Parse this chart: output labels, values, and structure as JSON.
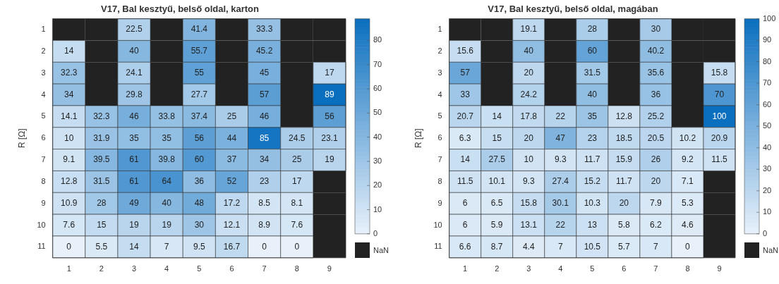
{
  "chart_data": [
    {
      "type": "heatmap",
      "title": "V17, Bal kesztyű, belső oldal, karton",
      "ylabel": "R [Ω]",
      "categories": [
        "1",
        "2",
        "3",
        "4",
        "5",
        "6",
        "7",
        "8",
        "9"
      ],
      "y_categories": [
        "1",
        "2",
        "3",
        "4",
        "5",
        "6",
        "7",
        "8",
        "9",
        "10",
        "11"
      ],
      "cells": [
        [
          null,
          null,
          22.5,
          null,
          41.4,
          null,
          33.3,
          null,
          null
        ],
        [
          14,
          null,
          40,
          null,
          55.7,
          null,
          45.2,
          null,
          null
        ],
        [
          32.3,
          null,
          24.1,
          null,
          55,
          null,
          45,
          null,
          17
        ],
        [
          34,
          null,
          29.8,
          null,
          27.7,
          null,
          57,
          null,
          89
        ],
        [
          14.1,
          32.3,
          46,
          33.8,
          37.4,
          25,
          46,
          null,
          56
        ],
        [
          10,
          31.9,
          35,
          35,
          56,
          44,
          85,
          24.5,
          23.1
        ],
        [
          9.1,
          39.5,
          61,
          39.8,
          60,
          37,
          34,
          25,
          19
        ],
        [
          12.8,
          31.5,
          61,
          64,
          36,
          52,
          23,
          17,
          null
        ],
        [
          10.9,
          28,
          49,
          40,
          48,
          17.2,
          8.5,
          8.1,
          null
        ],
        [
          7.6,
          15,
          19,
          19,
          30,
          12.1,
          8.9,
          7.6,
          null
        ],
        [
          0,
          5.5,
          14,
          7,
          9.5,
          16.7,
          0,
          0,
          null
        ]
      ],
      "clim": [
        0,
        89
      ],
      "cticks": [
        0,
        10,
        20,
        30,
        40,
        50,
        60,
        70,
        80
      ],
      "colors": [
        "#e8f1fa",
        "#0b6fbf"
      ],
      "data_labels": true,
      "annotations": [
        "NaN"
      ]
    },
    {
      "type": "heatmap",
      "title": "V17, Bal kesztyű, belső oldal, magában",
      "ylabel": "R [Ω]",
      "categories": [
        "1",
        "2",
        "3",
        "4",
        "5",
        "6",
        "7",
        "8",
        "9"
      ],
      "y_categories": [
        "1",
        "2",
        "3",
        "4",
        "5",
        "6",
        "7",
        "8",
        "9",
        "10",
        "11"
      ],
      "cells": [
        [
          null,
          null,
          19.1,
          null,
          28,
          null,
          30,
          null,
          null
        ],
        [
          15.6,
          null,
          40,
          null,
          60,
          null,
          40.2,
          null,
          null
        ],
        [
          57,
          null,
          20,
          null,
          31.5,
          null,
          35.6,
          null,
          15.8
        ],
        [
          33,
          null,
          24.2,
          null,
          40,
          null,
          36,
          null,
          70
        ],
        [
          20.7,
          14,
          17.8,
          22,
          35,
          12.8,
          25.2,
          null,
          100
        ],
        [
          6.3,
          15,
          20,
          47,
          23,
          18.5,
          20.5,
          10.2,
          20.9
        ],
        [
          14,
          27.5,
          10,
          9.3,
          11.7,
          15.9,
          26,
          9.2,
          11.5
        ],
        [
          11.5,
          10.1,
          9.3,
          27.4,
          15.2,
          11.7,
          20,
          7.1,
          null
        ],
        [
          6,
          6.5,
          15.8,
          30.1,
          10.3,
          20,
          7.9,
          5.3,
          null
        ],
        [
          6,
          5.9,
          13.1,
          22,
          13,
          5.8,
          6.2,
          4.6,
          null
        ],
        [
          6.6,
          8.7,
          4.4,
          7,
          10.5,
          5.7,
          7,
          0,
          null
        ]
      ],
      "clim": [
        0,
        100
      ],
      "cticks": [
        0,
        10,
        20,
        30,
        40,
        50,
        60,
        70,
        80,
        90,
        100
      ],
      "colors": [
        "#e8f1fa",
        "#0b6fbf"
      ],
      "data_labels": true,
      "annotations": [
        "NaN"
      ]
    }
  ]
}
